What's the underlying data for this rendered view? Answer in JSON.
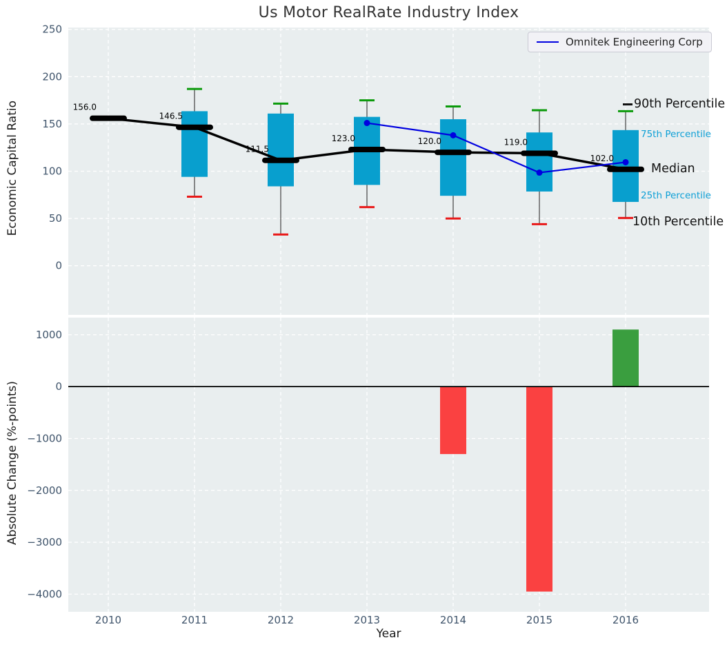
{
  "title": "Us Motor RealRate Industry Index",
  "legend": {
    "label": "Omnitek Engineering Corp"
  },
  "chart_data": [
    {
      "type": "box",
      "title": "Us Motor RealRate Industry Index",
      "ylabel": "Economic Capital Ratio",
      "categories": [
        "2010",
        "2011",
        "2012",
        "2013",
        "2014",
        "2015",
        "2016"
      ],
      "yticks": [
        250,
        200,
        150,
        100,
        50,
        0
      ],
      "ylim": [
        -52,
        252
      ],
      "grid": true,
      "series": {
        "median": [
          156.0,
          146.5,
          111.5,
          123.0,
          120.0,
          119.0,
          102.0
        ],
        "q1": [
          null,
          94,
          84,
          85.5,
          74,
          78.5,
          67.5
        ],
        "q3": [
          null,
          163.5,
          161,
          157.5,
          155,
          141,
          143.5
        ],
        "p10": [
          null,
          73,
          33,
          62,
          50,
          44,
          50.5
        ],
        "p90": [
          null,
          187,
          171.5,
          175,
          168.5,
          164.5,
          163.5
        ]
      },
      "median_labels": [
        "156.0",
        "146.5",
        "111.5",
        "123.0",
        "120.0",
        "119.0",
        "102.0"
      ],
      "annotations": [
        "90th Percentile",
        "75th Percentile",
        "Median",
        "25th Percentile",
        "10th Percentile"
      ],
      "colors": {
        "box": "#089fce",
        "median": "#000000",
        "p90_cap": "#0a9a0a",
        "p10_cap": "#e91717",
        "whisker": "#4d4d4d",
        "background": "#e9eeef",
        "tick_label": "#3f546b"
      }
    },
    {
      "type": "line",
      "name": "Omnitek Engineering Corp",
      "x": [
        2013,
        2014,
        2015,
        2016
      ],
      "values": [
        151.0,
        138.0,
        98.5,
        109.5
      ],
      "color": "#0000e0",
      "legend_position": "upper right"
    },
    {
      "type": "bar",
      "xlabel": "Year",
      "ylabel": "Absolute Change (%-points)",
      "categories": [
        "2010",
        "2011",
        "2012",
        "2013",
        "2014",
        "2015",
        "2016"
      ],
      "values": [
        null,
        null,
        null,
        null,
        -1300,
        -3950,
        1100
      ],
      "yticks": [
        1000,
        0,
        -1000,
        -2000,
        -3000,
        -4000
      ],
      "ylim": [
        -4340,
        1330
      ],
      "grid": true,
      "colors": {
        "positive": "#3a9e3f",
        "negative": "#fa4141",
        "zero_line": "#000000",
        "background": "#e9eeef",
        "tick_label": "#3f546b"
      }
    }
  ]
}
